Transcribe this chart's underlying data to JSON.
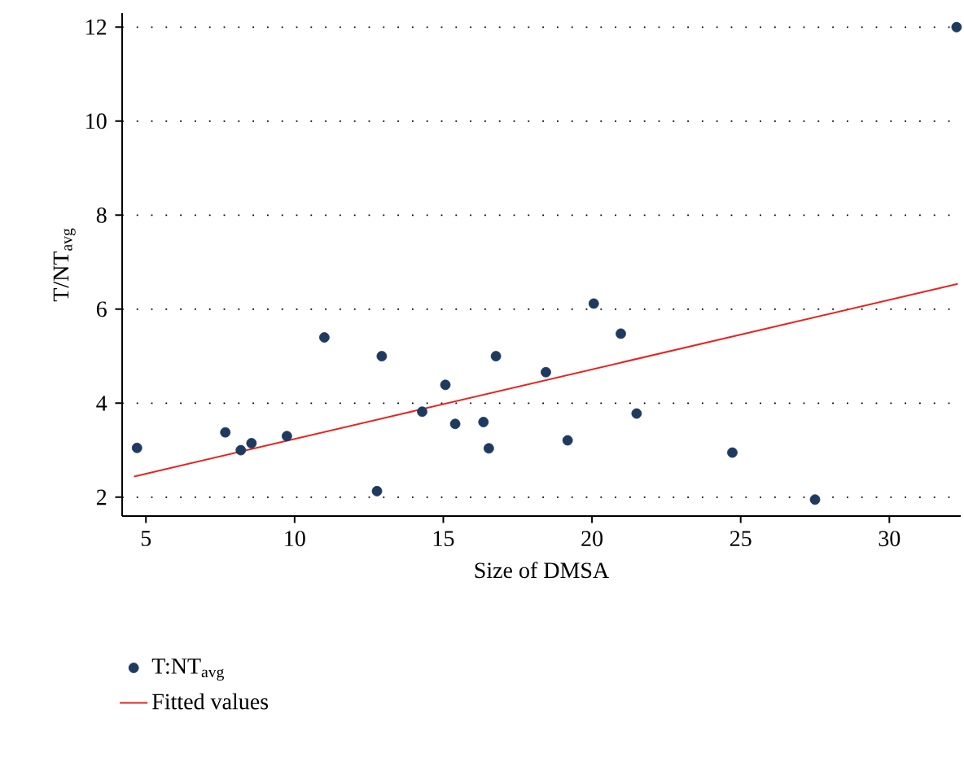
{
  "chart_data": {
    "type": "scatter",
    "xlabel": "Size of DMSA",
    "ylabel": "T/NT$_{avg}$",
    "xlim": [
      4.2,
      32.4
    ],
    "ylim": [
      1.6,
      12.3
    ],
    "xticks": [
      5,
      10,
      15,
      20,
      25,
      30
    ],
    "yticks": [
      2,
      4,
      6,
      8,
      10,
      12
    ],
    "grid": "y",
    "legend": "bottom left",
    "series": [
      {
        "name": "T:NT$_{avg}$",
        "marker": "circle",
        "color": "#1f3a5f",
        "x": [
          4.7,
          7.67,
          8.19,
          8.55,
          9.74,
          11.0,
          12.93,
          12.77,
          14.29,
          15.07,
          15.4,
          16.35,
          16.77,
          16.53,
          18.45,
          20.06,
          20.97,
          19.18,
          21.5,
          24.72,
          27.5,
          32.26
        ],
        "values": [
          3.05,
          3.38,
          3.0,
          3.15,
          3.3,
          5.4,
          5.0,
          2.13,
          3.82,
          4.39,
          3.56,
          3.6,
          5.0,
          3.04,
          4.66,
          6.12,
          5.48,
          3.21,
          3.78,
          2.95,
          1.95,
          12.0
        ]
      },
      {
        "name": "Fitted values",
        "type": "line",
        "marker": "none",
        "color": "#e8231e",
        "x": [
          4.6,
          32.3
        ],
        "values": [
          2.44,
          6.54
        ]
      }
    ]
  }
}
